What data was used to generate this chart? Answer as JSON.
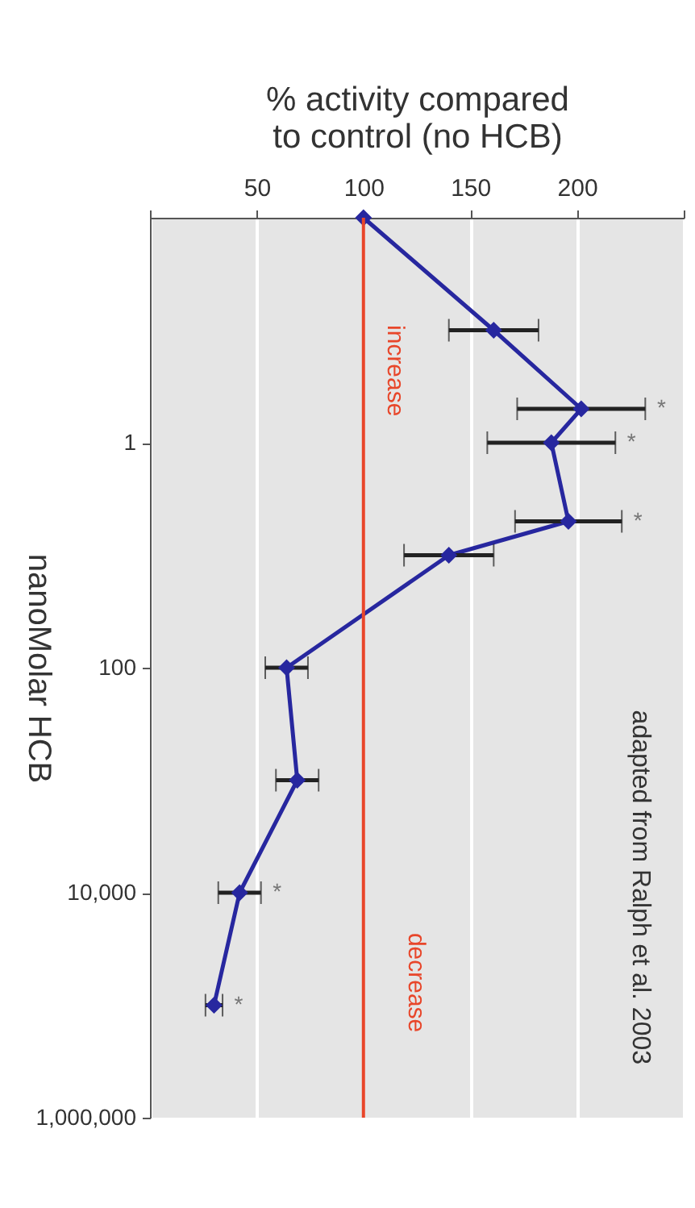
{
  "chart_data": {
    "type": "line",
    "orientation": "horizontal",
    "xlabel": "% activity compared to control (no HCB)",
    "ylabel": "nanoMolar HCB",
    "x": [
      0.01,
      0.1,
      0.5,
      1,
      5,
      10,
      100,
      1000,
      10000,
      100000
    ],
    "series": [
      {
        "color": "#27279f",
        "values": [
          100,
          161,
          202,
          188,
          196,
          140,
          64,
          69,
          42,
          30
        ],
        "errors": [
          null,
          21,
          30,
          30,
          25,
          21,
          10,
          10,
          10,
          4
        ]
      }
    ],
    "log": "y",
    "ylim": [
      1000000,
      0.01
    ],
    "yticks": [
      1,
      100,
      {
        "value": 10000,
        "label": "10,000"
      },
      {
        "value": 1000000,
        "label": "1,000,000"
      }
    ],
    "xlim": [
      0,
      250
    ],
    "xticks": [
      {
        "value": 0,
        "label": null
      },
      50,
      100,
      150,
      200,
      {
        "value": 250,
        "label": null
      }
    ],
    "grid": "x",
    "marker": "diamond",
    "ref_lines": [
      {
        "axis": "x",
        "value": 100,
        "color": "#e8462a"
      }
    ],
    "annotations": [
      "adapted from Ralph et al. 2003",
      "increase",
      "decrease",
      "*",
      "*",
      "*",
      "*",
      "*"
    ]
  }
}
